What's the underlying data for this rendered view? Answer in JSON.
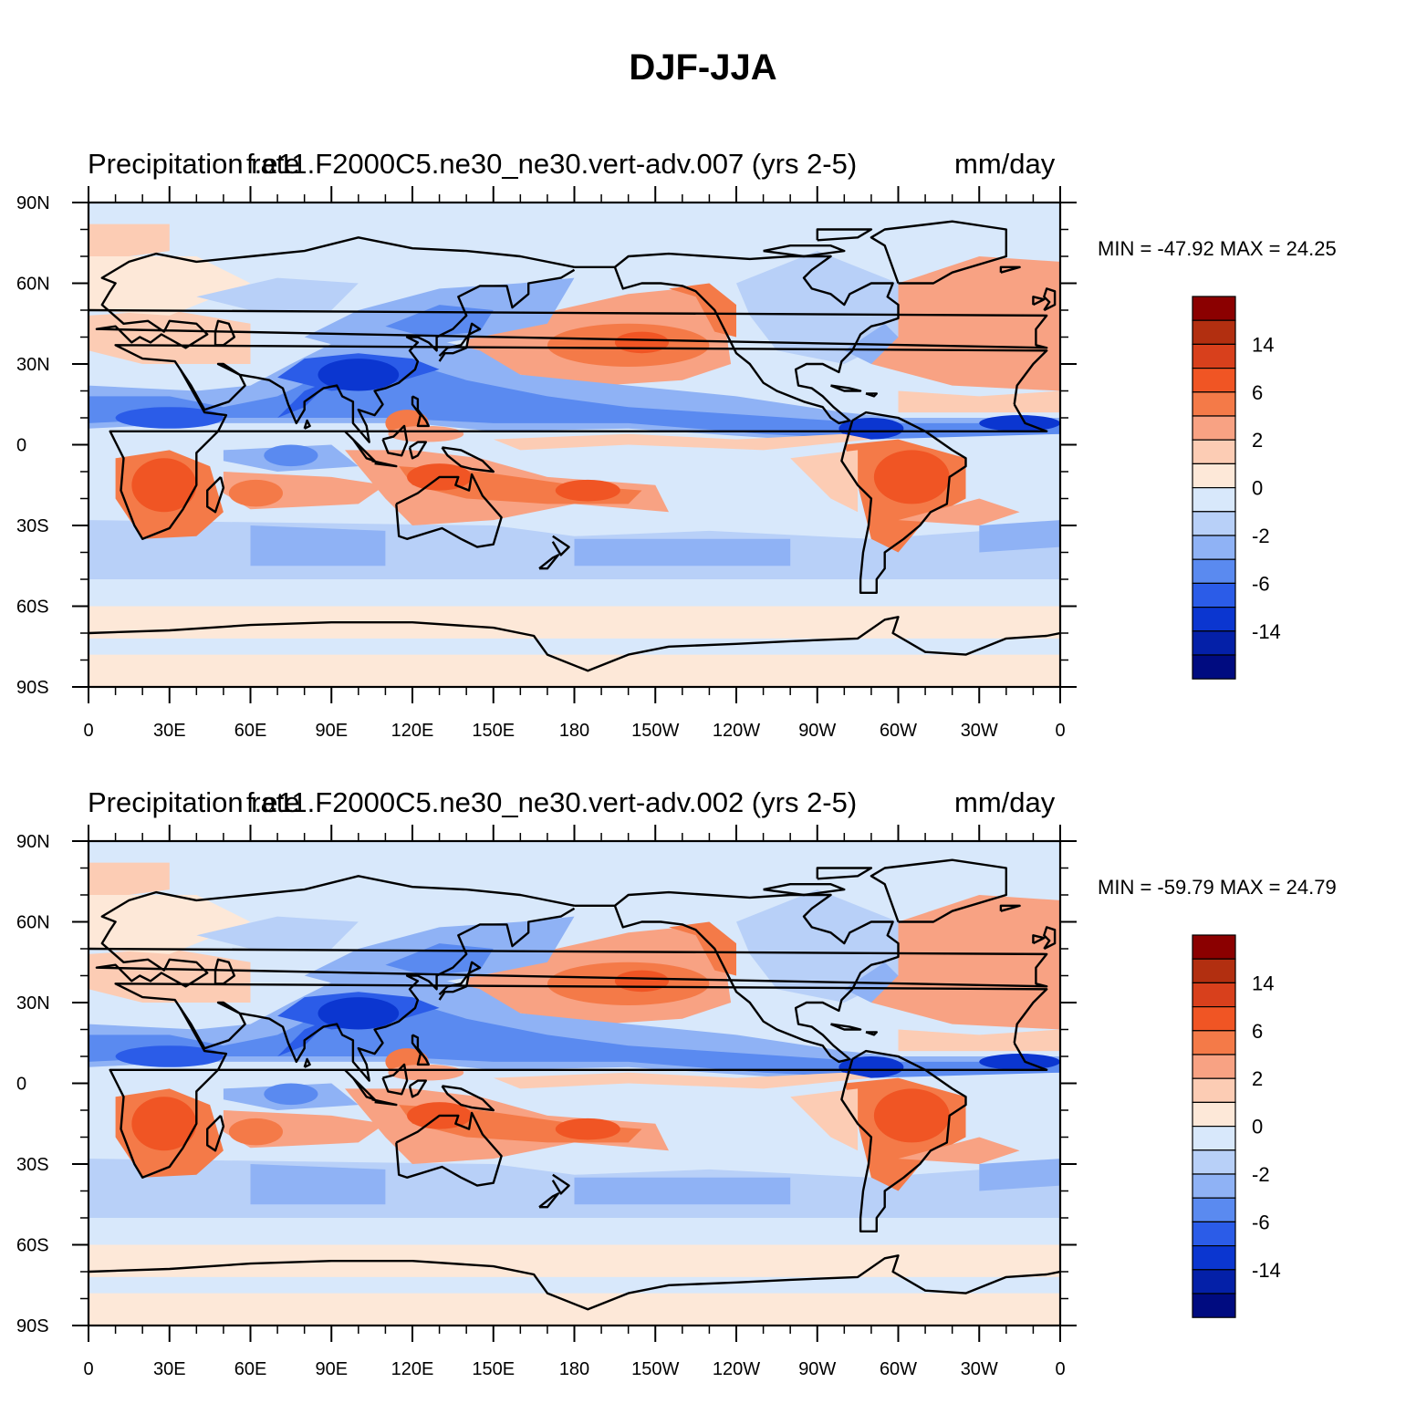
{
  "title": "DJF-JJA",
  "lat_labels": [
    "90N",
    "60N",
    "30N",
    "0",
    "30S",
    "60S",
    "90S"
  ],
  "lon_labels": [
    "0",
    "30E",
    "60E",
    "90E",
    "120E",
    "150E",
    "180",
    "150W",
    "120W",
    "90W",
    "60W",
    "30W",
    "0"
  ],
  "colorbar": {
    "colors": [
      "#8b0000",
      "#b22f10",
      "#d8401c",
      "#f05524",
      "#f47a48",
      "#f8a283",
      "#fcccb4",
      "#fde8d8",
      "#d8e8fb",
      "#b8d0f8",
      "#8fb2f5",
      "#5a8af0",
      "#2b5ce8",
      "#0b36d0",
      "#0420a8",
      "#000b80"
    ],
    "labels": [
      "14",
      "6",
      "2",
      "0",
      "-2",
      "-6",
      "-14"
    ]
  },
  "panels": [
    {
      "left_label": "Precipitation rate",
      "center_label": "f.e11.F2000C5.ne30_ne30.vert-adv.007 (yrs 2-5)",
      "right_label": "mm/day",
      "min_max": "MIN = -47.92 MAX =  24.25"
    },
    {
      "left_label": "Precipitation rate",
      "center_label": "f.e11.F2000C5.ne30_ne30.vert-adv.002 (yrs 2-5)",
      "right_label": "mm/day",
      "min_max": "MIN = -59.79 MAX =  24.79"
    }
  ],
  "map_fill_colors": {
    "base": "#d8e8fb",
    "light_pos": "#fde8d8",
    "pos": "#fcccb4",
    "pos2": "#f8a283",
    "pos3": "#f47a48",
    "pos4": "#f05524",
    "neg": "#b8d0f8",
    "neg2": "#8fb2f5",
    "neg3": "#5a8af0",
    "neg4": "#2b5ce8",
    "neg5": "#0b36d0"
  }
}
